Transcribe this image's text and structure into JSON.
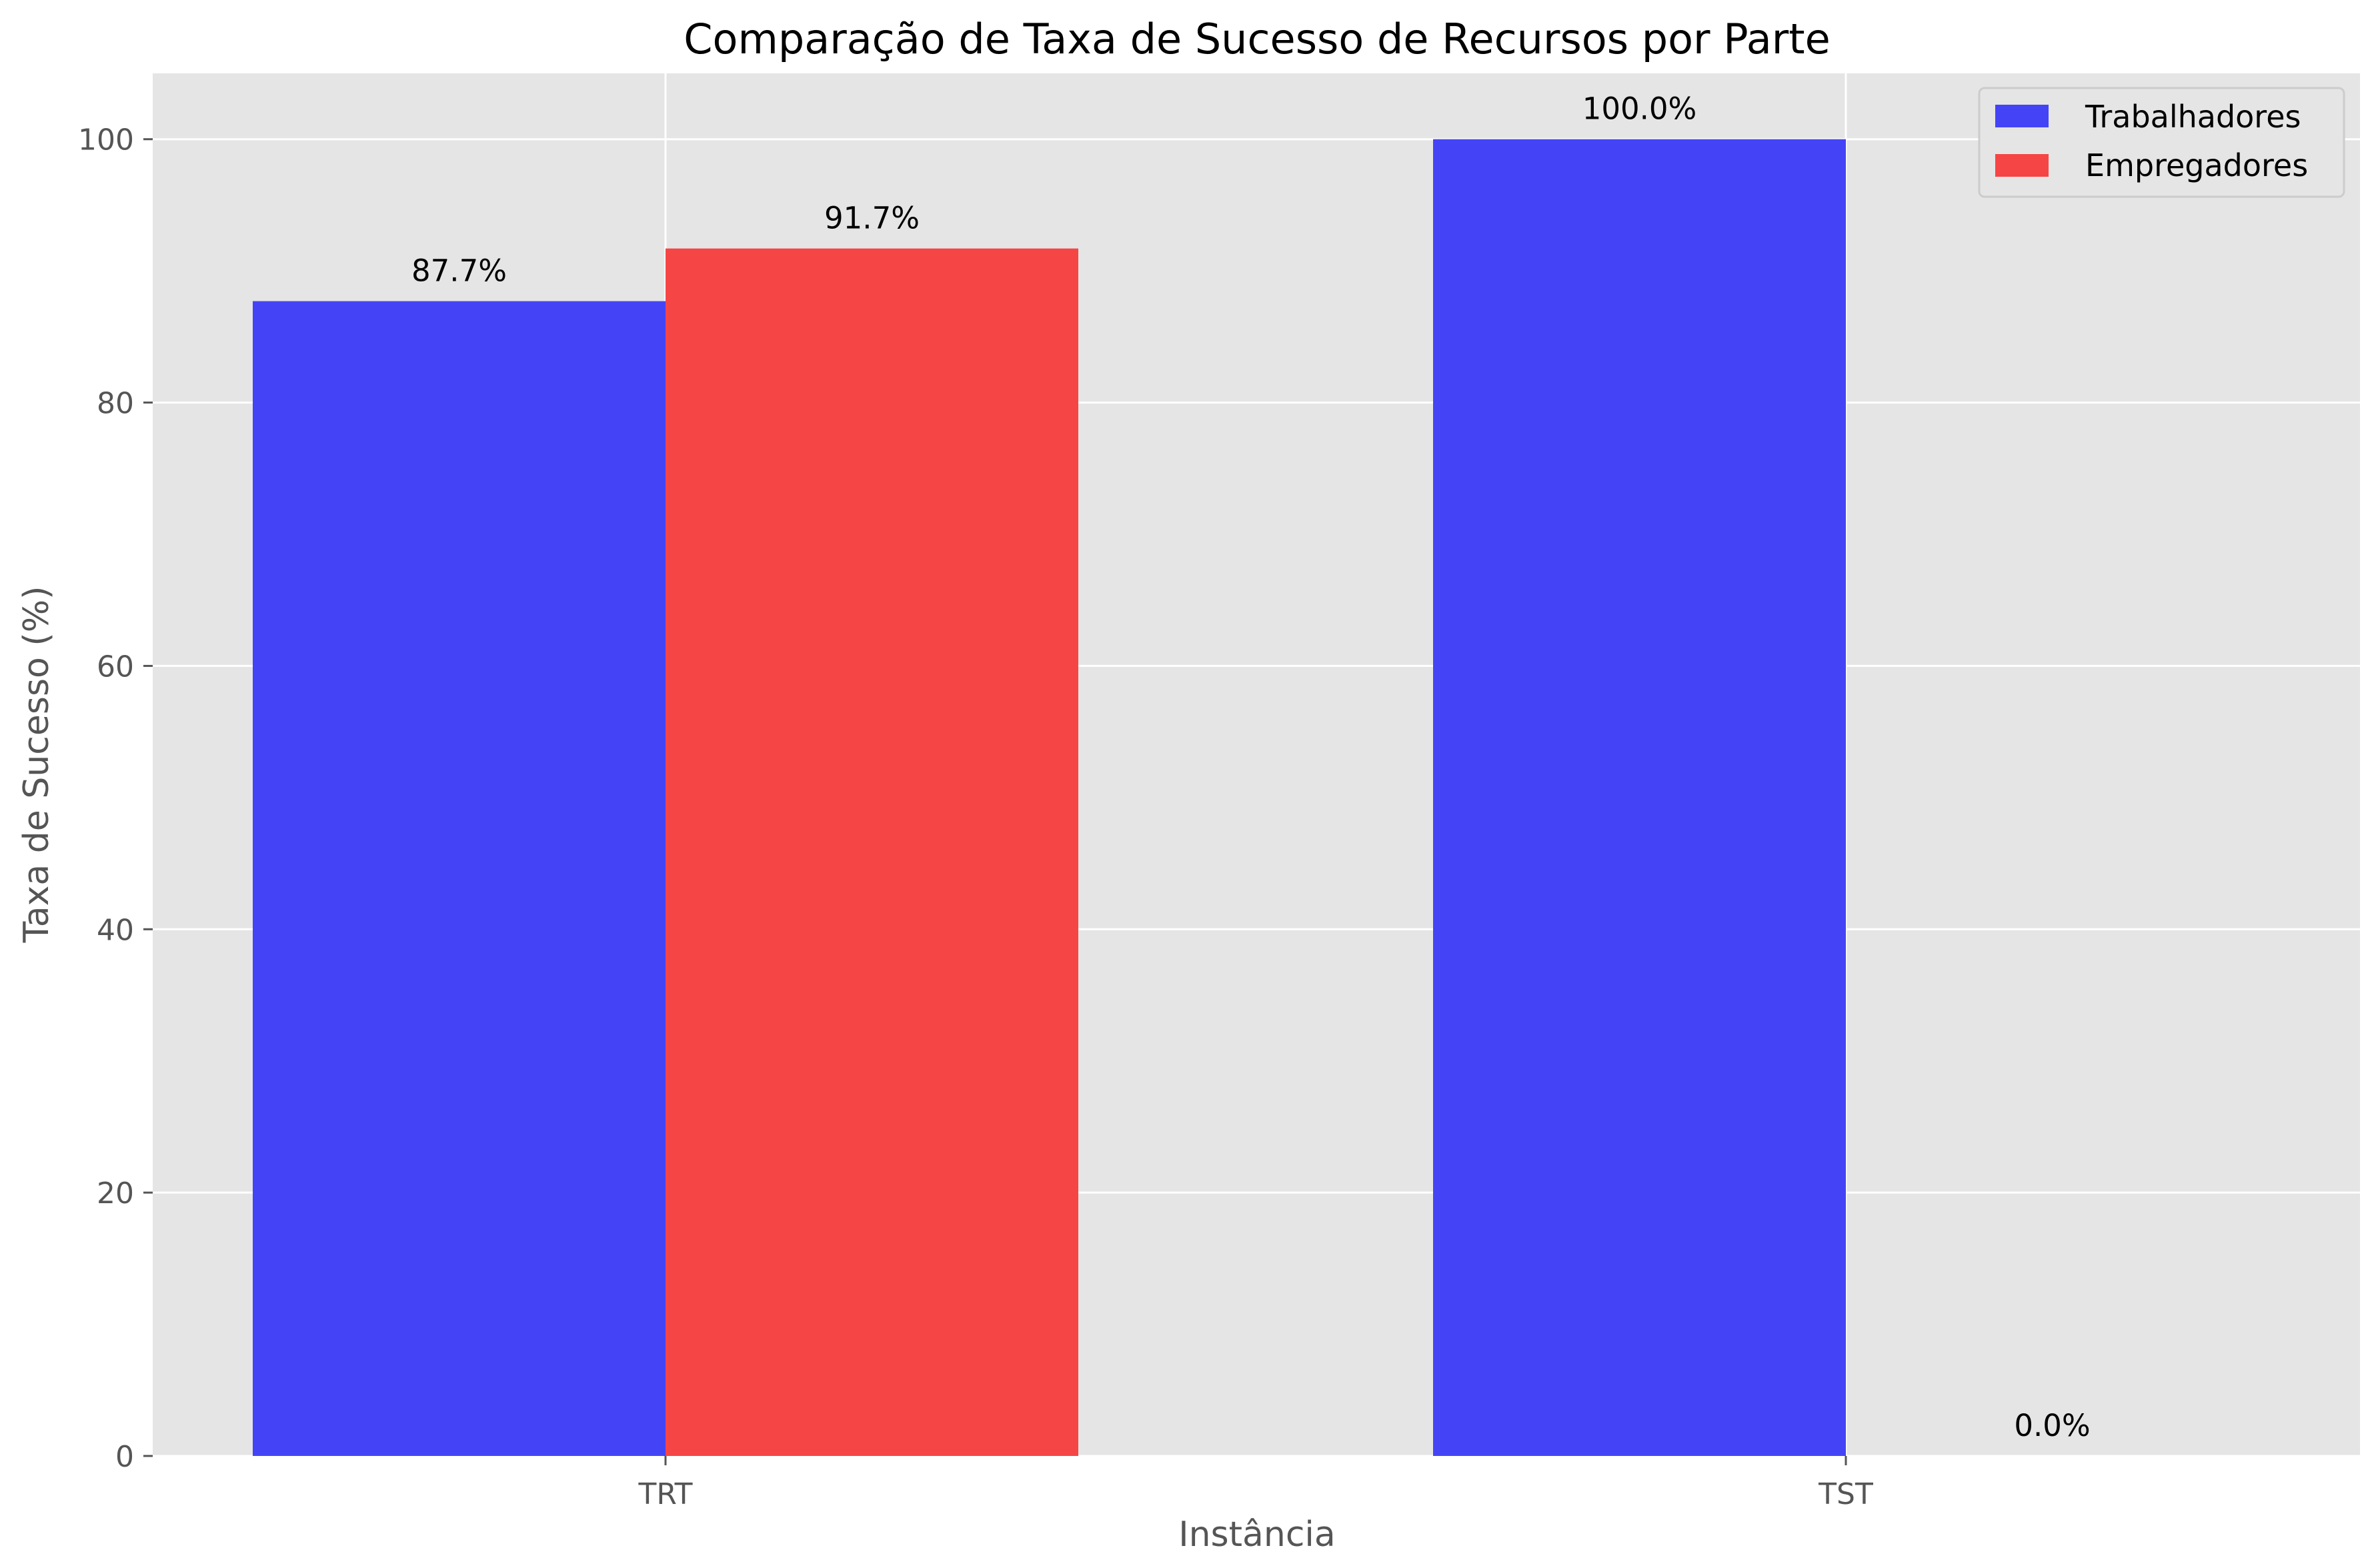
{
  "chart_data": {
    "type": "bar",
    "title": "Comparação de Taxa de Sucesso de Recursos por Parte",
    "xlabel": "Instância",
    "ylabel": "Taxa de Sucesso (%)",
    "categories": [
      "TRT",
      "TST"
    ],
    "series": [
      {
        "name": "Trabalhadores",
        "values": [
          87.7,
          100.0
        ],
        "labels": [
          "87.7%",
          "100.0%"
        ],
        "color": "#4444F6"
      },
      {
        "name": "Empregadores",
        "values": [
          91.7,
          0.0
        ],
        "labels": [
          "91.7%",
          "0.0%"
        ],
        "color": "#F64545"
      }
    ],
    "ylim": [
      0,
      105
    ],
    "yticks": [
      0,
      20,
      40,
      60,
      80,
      100
    ],
    "grid": true,
    "legend": "top-right",
    "background": "#E5E5E5",
    "grid_color": "#FFFFFF"
  }
}
